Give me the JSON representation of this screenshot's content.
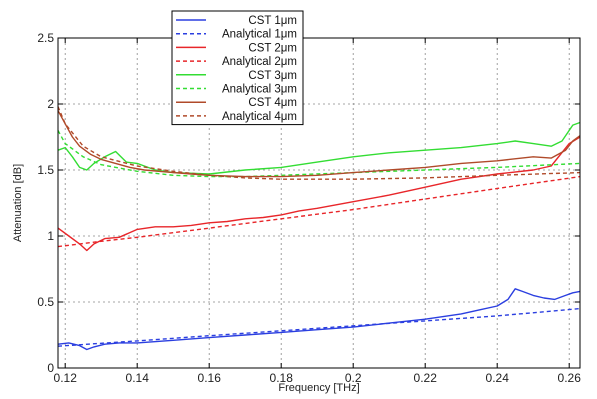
{
  "chart_data": {
    "type": "line",
    "title": "",
    "xlabel": "Frequency [THz]",
    "ylabel": "Attenuation [dB]",
    "xlim": [
      0.118,
      0.263
    ],
    "ylim": [
      0,
      2.5
    ],
    "grid": true,
    "legend_position": "top-left-center",
    "x_ticks": [
      {
        "value": 0.12,
        "label": "0.12"
      },
      {
        "value": 0.14,
        "label": "0.14"
      },
      {
        "value": 0.16,
        "label": "0.16"
      },
      {
        "value": 0.18,
        "label": "0.18"
      },
      {
        "value": 0.2,
        "label": "0.2"
      },
      {
        "value": 0.22,
        "label": "0.22"
      },
      {
        "value": 0.24,
        "label": "0.24"
      },
      {
        "value": 0.26,
        "label": "0.26"
      }
    ],
    "y_ticks": [
      {
        "value": 0,
        "label": "0"
      },
      {
        "value": 0.5,
        "label": "0.5"
      },
      {
        "value": 1,
        "label": "1"
      },
      {
        "value": 1.5,
        "label": "1.5"
      },
      {
        "value": 2,
        "label": "2"
      },
      {
        "value": 2.5,
        "label": "2.5"
      }
    ],
    "series": [
      {
        "name": "CST 1μm",
        "color": "#2b3fe0",
        "dash": "solid",
        "x": [
          0.118,
          0.121,
          0.124,
          0.126,
          0.128,
          0.131,
          0.135,
          0.14,
          0.15,
          0.16,
          0.17,
          0.18,
          0.19,
          0.2,
          0.21,
          0.22,
          0.23,
          0.235,
          0.24,
          0.243,
          0.245,
          0.247,
          0.25,
          0.253,
          0.256,
          0.259,
          0.261,
          0.263
        ],
        "y": [
          0.18,
          0.19,
          0.17,
          0.14,
          0.16,
          0.18,
          0.19,
          0.19,
          0.21,
          0.23,
          0.25,
          0.27,
          0.29,
          0.31,
          0.34,
          0.37,
          0.41,
          0.44,
          0.47,
          0.52,
          0.6,
          0.58,
          0.55,
          0.53,
          0.52,
          0.55,
          0.57,
          0.58
        ]
      },
      {
        "name": "Analytical 1μm",
        "color": "#2b3fe0",
        "dash": "dashed",
        "x": [
          0.118,
          0.14,
          0.16,
          0.18,
          0.2,
          0.22,
          0.24,
          0.263
        ],
        "y": [
          0.165,
          0.205,
          0.245,
          0.282,
          0.32,
          0.357,
          0.395,
          0.45
        ]
      },
      {
        "name": "CST 2μm",
        "color": "#e8262a",
        "dash": "solid",
        "x": [
          0.118,
          0.121,
          0.124,
          0.126,
          0.128,
          0.131,
          0.135,
          0.14,
          0.145,
          0.15,
          0.155,
          0.16,
          0.165,
          0.17,
          0.175,
          0.18,
          0.185,
          0.19,
          0.2,
          0.21,
          0.22,
          0.23,
          0.24,
          0.25,
          0.255,
          0.26,
          0.263
        ],
        "y": [
          1.06,
          1.0,
          0.94,
          0.89,
          0.94,
          0.98,
          0.99,
          1.05,
          1.07,
          1.07,
          1.08,
          1.1,
          1.11,
          1.13,
          1.14,
          1.16,
          1.19,
          1.21,
          1.26,
          1.31,
          1.37,
          1.43,
          1.47,
          1.5,
          1.53,
          1.7,
          1.75
        ]
      },
      {
        "name": "Analytical 2μm",
        "color": "#e8262a",
        "dash": "dashed",
        "x": [
          0.118,
          0.13,
          0.14,
          0.16,
          0.18,
          0.2,
          0.22,
          0.24,
          0.263
        ],
        "y": [
          0.92,
          0.96,
          0.99,
          1.06,
          1.13,
          1.2,
          1.28,
          1.36,
          1.45
        ]
      },
      {
        "name": "CST 3μm",
        "color": "#33dd33",
        "dash": "solid",
        "x": [
          0.118,
          0.12,
          0.122,
          0.124,
          0.126,
          0.128,
          0.131,
          0.134,
          0.137,
          0.14,
          0.145,
          0.15,
          0.16,
          0.17,
          0.18,
          0.19,
          0.2,
          0.21,
          0.22,
          0.23,
          0.24,
          0.245,
          0.25,
          0.255,
          0.258,
          0.261,
          0.263
        ],
        "y": [
          1.65,
          1.67,
          1.6,
          1.52,
          1.5,
          1.55,
          1.6,
          1.64,
          1.56,
          1.55,
          1.5,
          1.48,
          1.47,
          1.5,
          1.52,
          1.56,
          1.6,
          1.63,
          1.65,
          1.67,
          1.7,
          1.72,
          1.7,
          1.68,
          1.72,
          1.84,
          1.86
        ]
      },
      {
        "name": "Analytical 3μm",
        "color": "#33dd33",
        "dash": "dashed",
        "x": [
          0.118,
          0.12,
          0.125,
          0.13,
          0.14,
          0.15,
          0.16,
          0.17,
          0.18,
          0.2,
          0.22,
          0.24,
          0.263
        ],
        "y": [
          1.8,
          1.7,
          1.6,
          1.54,
          1.49,
          1.46,
          1.45,
          1.45,
          1.46,
          1.48,
          1.5,
          1.52,
          1.55
        ]
      },
      {
        "name": "CST 4μm",
        "color": "#b04a2a",
        "dash": "solid",
        "x": [
          0.118,
          0.12,
          0.122,
          0.124,
          0.127,
          0.13,
          0.134,
          0.138,
          0.142,
          0.146,
          0.15,
          0.155,
          0.16,
          0.17,
          0.18,
          0.19,
          0.2,
          0.21,
          0.22,
          0.23,
          0.24,
          0.25,
          0.255,
          0.259,
          0.261,
          0.263
        ],
        "y": [
          1.95,
          1.85,
          1.75,
          1.68,
          1.62,
          1.58,
          1.55,
          1.52,
          1.5,
          1.49,
          1.48,
          1.47,
          1.46,
          1.45,
          1.45,
          1.46,
          1.48,
          1.5,
          1.52,
          1.55,
          1.57,
          1.6,
          1.59,
          1.65,
          1.72,
          1.76
        ]
      },
      {
        "name": "Analytical 4μm",
        "color": "#b04a2a",
        "dash": "dashed",
        "x": [
          0.118,
          0.12,
          0.125,
          0.13,
          0.14,
          0.15,
          0.16,
          0.17,
          0.18,
          0.2,
          0.22,
          0.24,
          0.263
        ],
        "y": [
          1.98,
          1.85,
          1.68,
          1.6,
          1.53,
          1.49,
          1.46,
          1.44,
          1.43,
          1.43,
          1.44,
          1.46,
          1.48
        ]
      }
    ]
  }
}
